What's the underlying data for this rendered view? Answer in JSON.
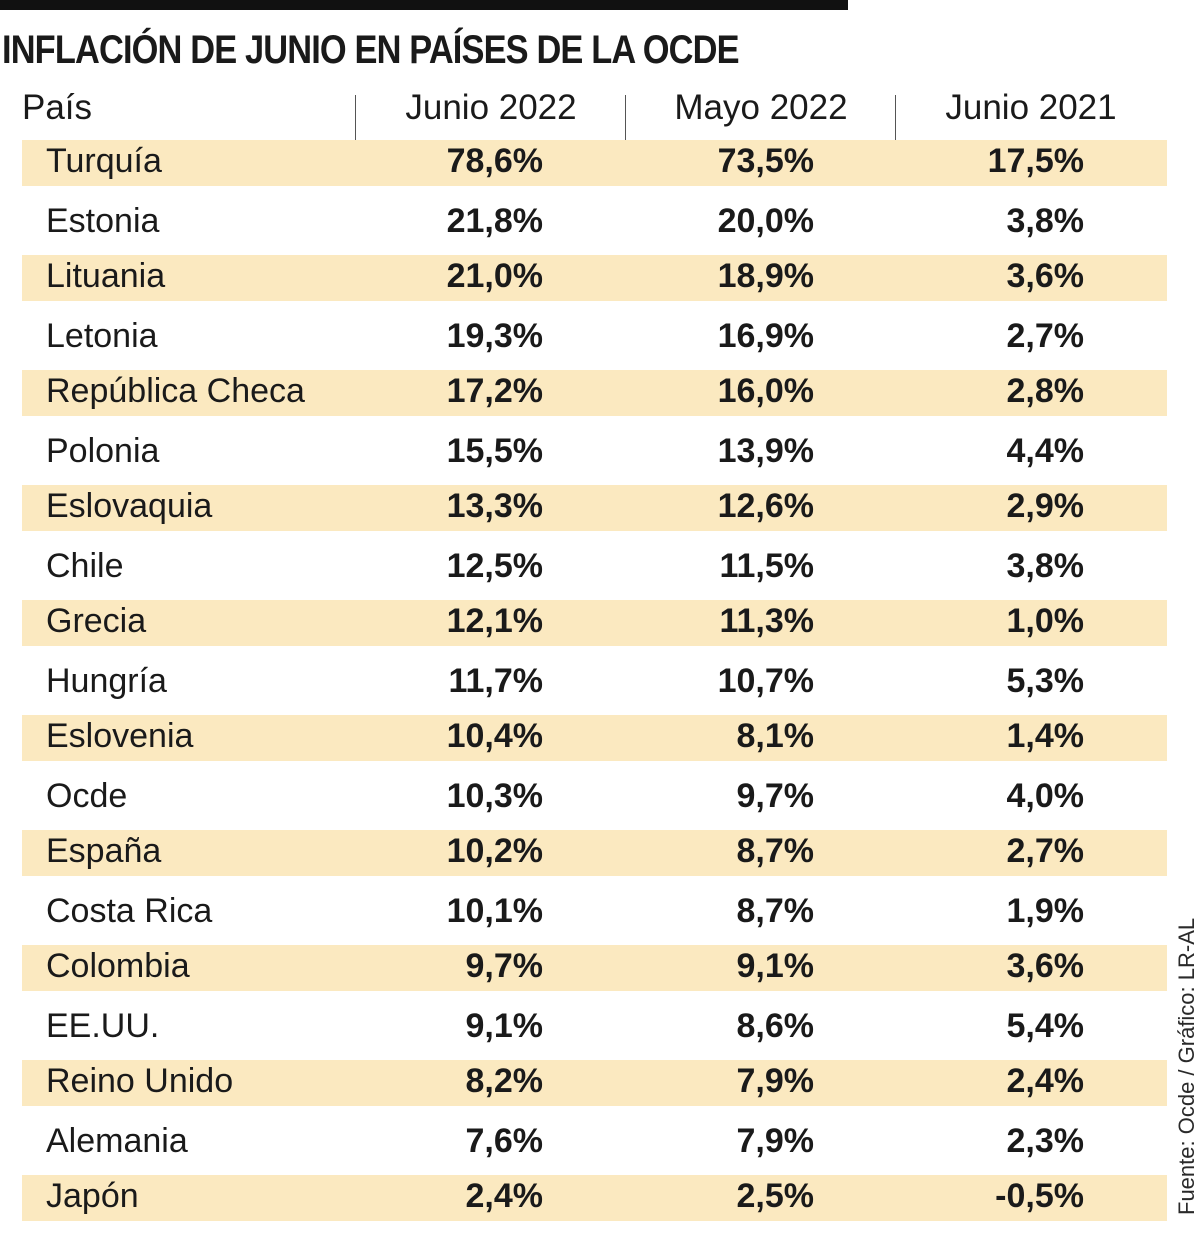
{
  "title": "INFLACIÓN DE JUNIO EN PAÍSES DE LA OCDE",
  "source": "Fuente: Ocde / Gráfico: LR-AL",
  "colors": {
    "row_shade": "#fbe9c0",
    "rule": "#111111"
  },
  "chart_data": {
    "type": "table",
    "title": "INFLACIÓN DE JUNIO EN PAÍSES DE LA OCDE",
    "columns": [
      "País",
      "Junio 2022",
      "Mayo 2022",
      "Junio 2021"
    ],
    "rows": [
      {
        "country": "Turquía",
        "jun2022": "78,6%",
        "may2022": "73,5%",
        "jun2021": "17,5%"
      },
      {
        "country": "Estonia",
        "jun2022": "21,8%",
        "may2022": "20,0%",
        "jun2021": "3,8%"
      },
      {
        "country": "Lituania",
        "jun2022": "21,0%",
        "may2022": "18,9%",
        "jun2021": "3,6%"
      },
      {
        "country": "Letonia",
        "jun2022": "19,3%",
        "may2022": "16,9%",
        "jun2021": "2,7%"
      },
      {
        "country": "República Checa",
        "jun2022": "17,2%",
        "may2022": "16,0%",
        "jun2021": "2,8%"
      },
      {
        "country": "Polonia",
        "jun2022": "15,5%",
        "may2022": "13,9%",
        "jun2021": "4,4%"
      },
      {
        "country": "Eslovaquia",
        "jun2022": "13,3%",
        "may2022": "12,6%",
        "jun2021": "2,9%"
      },
      {
        "country": "Chile",
        "jun2022": "12,5%",
        "may2022": "11,5%",
        "jun2021": "3,8%"
      },
      {
        "country": "Grecia",
        "jun2022": "12,1%",
        "may2022": "11,3%",
        "jun2021": "1,0%"
      },
      {
        "country": "Hungría",
        "jun2022": "11,7%",
        "may2022": "10,7%",
        "jun2021": "5,3%"
      },
      {
        "country": "Eslovenia",
        "jun2022": "10,4%",
        "may2022": "8,1%",
        "jun2021": "1,4%"
      },
      {
        "country": "Ocde",
        "jun2022": "10,3%",
        "may2022": "9,7%",
        "jun2021": "4,0%"
      },
      {
        "country": "España",
        "jun2022": "10,2%",
        "may2022": "8,7%",
        "jun2021": "2,7%"
      },
      {
        "country": "Costa Rica",
        "jun2022": "10,1%",
        "may2022": "8,7%",
        "jun2021": "1,9%"
      },
      {
        "country": "Colombia",
        "jun2022": "9,7%",
        "may2022": "9,1%",
        "jun2021": "3,6%"
      },
      {
        "country": "EE.UU.",
        "jun2022": "9,1%",
        "may2022": "8,6%",
        "jun2021": "5,4%"
      },
      {
        "country": "Reino Unido",
        "jun2022": "8,2%",
        "may2022": "7,9%",
        "jun2021": "2,4%"
      },
      {
        "country": "Alemania",
        "jun2022": "7,6%",
        "may2022": "7,9%",
        "jun2021": "2,3%"
      },
      {
        "country": "Japón",
        "jun2022": "2,4%",
        "may2022": "2,5%",
        "jun2021": "-0,5%"
      }
    ]
  }
}
